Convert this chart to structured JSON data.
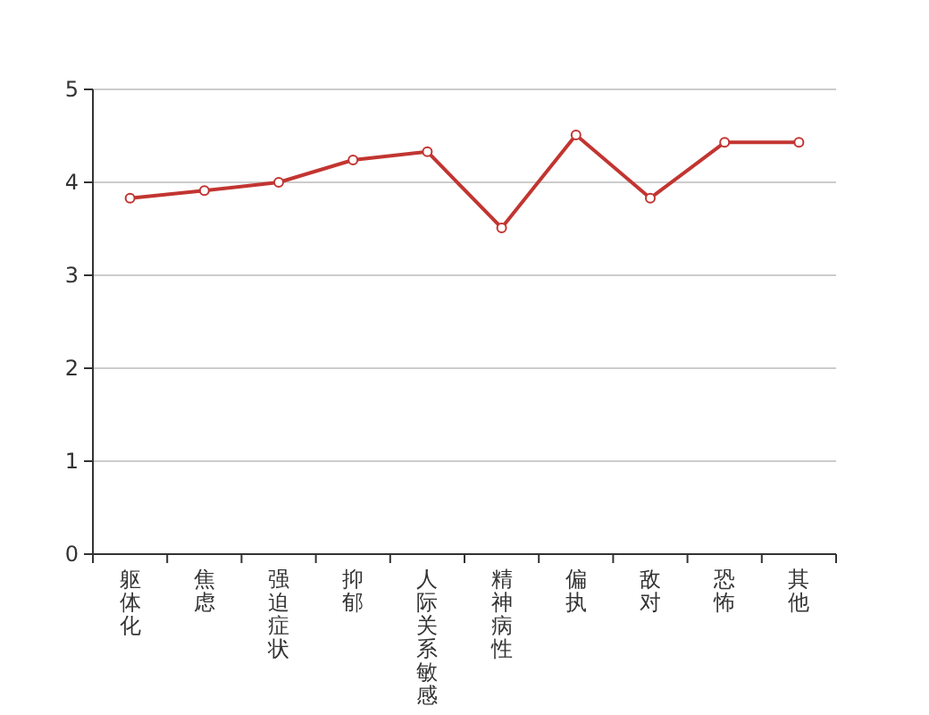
{
  "chart_data": {
    "type": "line",
    "categories": [
      "躯体化",
      "焦虑",
      "强迫症状",
      "抑郁",
      "人际关系敏感",
      "精神病性",
      "偏执",
      "敌对",
      "恐怖",
      "其他"
    ],
    "series": [
      {
        "color": "#c23531",
        "values": [
          3.83,
          3.91,
          4.0,
          4.24,
          4.33,
          3.51,
          4.51,
          3.83,
          4.43,
          4.43
        ]
      }
    ],
    "ylim": [
      0,
      5
    ],
    "yticks": [
      0,
      1,
      2,
      3,
      4,
      5
    ],
    "grid": "y",
    "marker": "circle",
    "line_style": "solid"
  }
}
